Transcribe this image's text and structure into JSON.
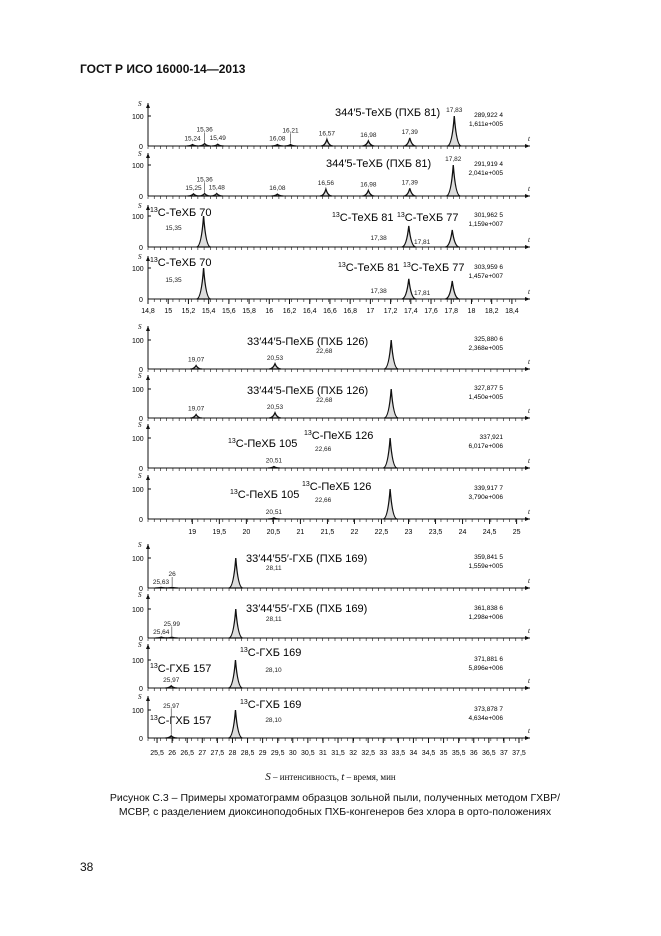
{
  "header": "ГОСТ Р ИСО 16000-14—2013",
  "axis_symbols": {
    "y": "S",
    "x": "t",
    "y_ticks": [
      "0",
      "100"
    ]
  },
  "chart_data": [
    {
      "type": "line",
      "xlim": [
        14.8,
        18.5
      ],
      "xticks": [
        "14,8",
        "15",
        "15,2",
        "15,4",
        "15,6",
        "15,8",
        "16",
        "16,2",
        "16,4",
        "16,6",
        "16,8",
        "17",
        "17,2",
        "17,4",
        "17,6",
        "17,8",
        "18",
        "18,2",
        "18,4"
      ],
      "xtick_values": [
        14.8,
        15,
        15.2,
        15.4,
        15.6,
        15.8,
        16,
        16.2,
        16.4,
        16.6,
        16.8,
        17,
        17.2,
        17.4,
        17.6,
        17.8,
        18,
        18.2,
        18.4
      ],
      "panels": [
        {
          "labels": [
            {
              "sup": "",
              "text": "344′5-ТеХБ (ПХБ 81)"
            }
          ],
          "mz": "289,922 4",
          "intensity": "1,611e+005",
          "peaks": [
            {
              "rt": 15.24,
              "h": 5,
              "label": "15,24"
            },
            {
              "rt": 15.36,
              "h": 8,
              "label": "15,36"
            },
            {
              "rt": 15.49,
              "h": 6,
              "label": "15,49"
            },
            {
              "rt": 16.08,
              "h": 5,
              "label": "16,08"
            },
            {
              "rt": 16.21,
              "h": 5,
              "label": "16,21"
            },
            {
              "rt": 16.57,
              "h": 22,
              "label": "16,57"
            },
            {
              "rt": 16.98,
              "h": 17,
              "label": "16,98"
            },
            {
              "rt": 17.39,
              "h": 27,
              "label": "17,39"
            },
            {
              "rt": 17.83,
              "h": 100,
              "label": "17,83"
            }
          ]
        },
        {
          "labels": [
            {
              "sup": "",
              "text": "344′5-ТеХБ (ПХБ 81)"
            }
          ],
          "mz": "291,919 4",
          "intensity": "2,041e+005",
          "peaks": [
            {
              "rt": 15.25,
              "h": 7,
              "label": "15,25"
            },
            {
              "rt": 15.36,
              "h": 8,
              "label": "15,36"
            },
            {
              "rt": 15.48,
              "h": 8,
              "label": "15,48"
            },
            {
              "rt": 16.08,
              "h": 6,
              "label": "16,08"
            },
            {
              "rt": 16.56,
              "h": 22,
              "label": "16,56"
            },
            {
              "rt": 16.98,
              "h": 18,
              "label": "16,98"
            },
            {
              "rt": 17.39,
              "h": 25,
              "label": "17,39"
            },
            {
              "rt": 17.82,
              "h": 100,
              "label": "17,82"
            }
          ]
        },
        {
          "labels": [
            {
              "sup": "13",
              "text": "C-ТеХБ 70"
            },
            {
              "sup": "13",
              "text": "C-ТеХБ 81"
            },
            {
              "sup": "13",
              "text": "C-ТеХБ 77"
            }
          ],
          "mz": "301,962 5",
          "intensity": "1,159e+007",
          "peaks": [
            {
              "rt": 15.35,
              "h": 100,
              "label": "15,35"
            },
            {
              "rt": 17.38,
              "h": 68,
              "label": "17,38"
            },
            {
              "rt": 17.81,
              "h": 55,
              "label": "17,81"
            }
          ]
        },
        {
          "labels": [
            {
              "sup": "13",
              "text": "C-ТеХБ 70"
            },
            {
              "sup": "13",
              "text": "C-ТеХБ 81"
            },
            {
              "sup": "13",
              "text": "C-ТеХБ 77"
            }
          ],
          "mz": "303,959 6",
          "intensity": "1,457e+007",
          "peaks": [
            {
              "rt": 15.35,
              "h": 100,
              "label": "15,35"
            },
            {
              "rt": 17.38,
              "h": 65,
              "label": "17,38"
            },
            {
              "rt": 17.81,
              "h": 58,
              "label": "17,81"
            }
          ]
        }
      ]
    },
    {
      "type": "line",
      "xlim": [
        18.18,
        25.1
      ],
      "xticks": [
        "19",
        "19,5",
        "20",
        "20,5",
        "21",
        "21,5",
        "22",
        "22,5",
        "23",
        "23,5",
        "24",
        "24,5",
        "25"
      ],
      "xtick_values": [
        19,
        19.5,
        20,
        20.5,
        21,
        21.5,
        22,
        22.5,
        23,
        23.5,
        24,
        24.5,
        25
      ],
      "panels": [
        {
          "labels": [
            {
              "sup": "",
              "text": "33′44′5-ПеХБ (ПХБ 126)"
            }
          ],
          "mz": "325,880 6",
          "intensity": "2,368e+005",
          "peaks": [
            {
              "rt": 19.07,
              "h": 12,
              "label": "19,07"
            },
            {
              "rt": 20.53,
              "h": 18,
              "label": "20,53"
            },
            {
              "rt": 22.68,
              "h": 100,
              "label": "22,68"
            }
          ]
        },
        {
          "labels": [
            {
              "sup": "",
              "text": "33′44′5-ПеХБ (ПХБ 126)"
            }
          ],
          "mz": "327,877 5",
          "intensity": "1,450e+005",
          "peaks": [
            {
              "rt": 19.07,
              "h": 12,
              "label": "19,07"
            },
            {
              "rt": 20.53,
              "h": 18,
              "label": "20,53"
            },
            {
              "rt": 22.68,
              "h": 100,
              "label": "22,68"
            }
          ]
        },
        {
          "labels": [
            {
              "sup": "13",
              "text": "C-ПеХБ 105"
            },
            {
              "sup": "13",
              "text": "C-ПеХБ 126"
            }
          ],
          "mz": "337,921",
          "intensity": "6,017e+006",
          "peaks": [
            {
              "rt": 20.51,
              "h": 5,
              "label": "20,51"
            },
            {
              "rt": 22.66,
              "h": 100,
              "label": "22,66"
            }
          ]
        },
        {
          "labels": [
            {
              "sup": "13",
              "text": "C-ПеХБ 105"
            },
            {
              "sup": "13",
              "text": "C-ПеХБ 126"
            }
          ],
          "mz": "339,917 7",
          "intensity": "3,790e+006",
          "peaks": [
            {
              "rt": 20.51,
              "h": 4,
              "label": "20,51"
            },
            {
              "rt": 22.66,
              "h": 100,
              "label": "22,66"
            }
          ]
        }
      ]
    },
    {
      "type": "line",
      "xlim": [
        25.2,
        37.6
      ],
      "xticks": [
        "25,5",
        "26",
        "26,5",
        "27",
        "27,5",
        "28",
        "28,5",
        "29",
        "29,5",
        "30",
        "30,5",
        "31",
        "31,5",
        "32",
        "32,5",
        "33",
        "33,5",
        "34",
        "34,5",
        "35",
        "35,5",
        "36",
        "36,5",
        "37",
        "37,5"
      ],
      "xtick_values": [
        25.5,
        26,
        26.5,
        27,
        27.5,
        28,
        28.5,
        29,
        29.5,
        30,
        30.5,
        31,
        31.5,
        32,
        32.5,
        33,
        33.5,
        34,
        34.5,
        35,
        35.5,
        36,
        36.5,
        37,
        37.5
      ],
      "panels": [
        {
          "labels": [
            {
              "sup": "",
              "text": "33′44′55′-ГХБ (ПХБ 169)"
            }
          ],
          "mz": "359,841 5",
          "intensity": "1,559e+005",
          "peaks": [
            {
              "rt": 25.63,
              "h": 2,
              "label": "25,63"
            },
            {
              "rt": 26.0,
              "h": 2,
              "label": "26"
            },
            {
              "rt": 28.11,
              "h": 100,
              "label": "28,11"
            }
          ]
        },
        {
          "labels": [
            {
              "sup": "",
              "text": "33′44′55′-ГХБ (ПХБ 169)"
            }
          ],
          "mz": "361,838 6",
          "intensity": "1,298e+006",
          "peaks": [
            {
              "rt": 25.64,
              "h": 3,
              "label": "25,64"
            },
            {
              "rt": 25.99,
              "h": 3,
              "label": "25,99"
            },
            {
              "rt": 28.11,
              "h": 100,
              "label": "28,11"
            }
          ]
        },
        {
          "labels": [
            {
              "sup": "13",
              "text": "C-ГХБ 157"
            },
            {
              "sup": "13",
              "text": "C-ГХБ 169"
            }
          ],
          "mz": "371,881 6",
          "intensity": "5,896e+006",
          "peaks": [
            {
              "rt": 25.97,
              "h": 8,
              "label": "25,97"
            },
            {
              "rt": 28.1,
              "h": 100,
              "label": "28,10"
            }
          ]
        },
        {
          "labels": [
            {
              "sup": "13",
              "text": "C-ГХБ 157"
            },
            {
              "sup": "13",
              "text": "C-ГХБ 169"
            }
          ],
          "mz": "373,878 7",
          "intensity": "4,634e+006",
          "peaks": [
            {
              "rt": 25.97,
              "h": 8,
              "label": "25,97"
            },
            {
              "rt": 28.1,
              "h": 100,
              "label": "28,10"
            }
          ]
        }
      ]
    }
  ],
  "legend": {
    "s": "S",
    "s_text": " – интенсивность, ",
    "t": "t",
    "t_text": " – время, мин"
  },
  "caption": "Рисунок С.3 – Примеры хроматограмм образцов зольной пыли, полученных методом ГХВР/МСВР, с разделением диоксиноподобных ПХБ-конгенеров без хлора в орто-положениях",
  "page_number": "38"
}
